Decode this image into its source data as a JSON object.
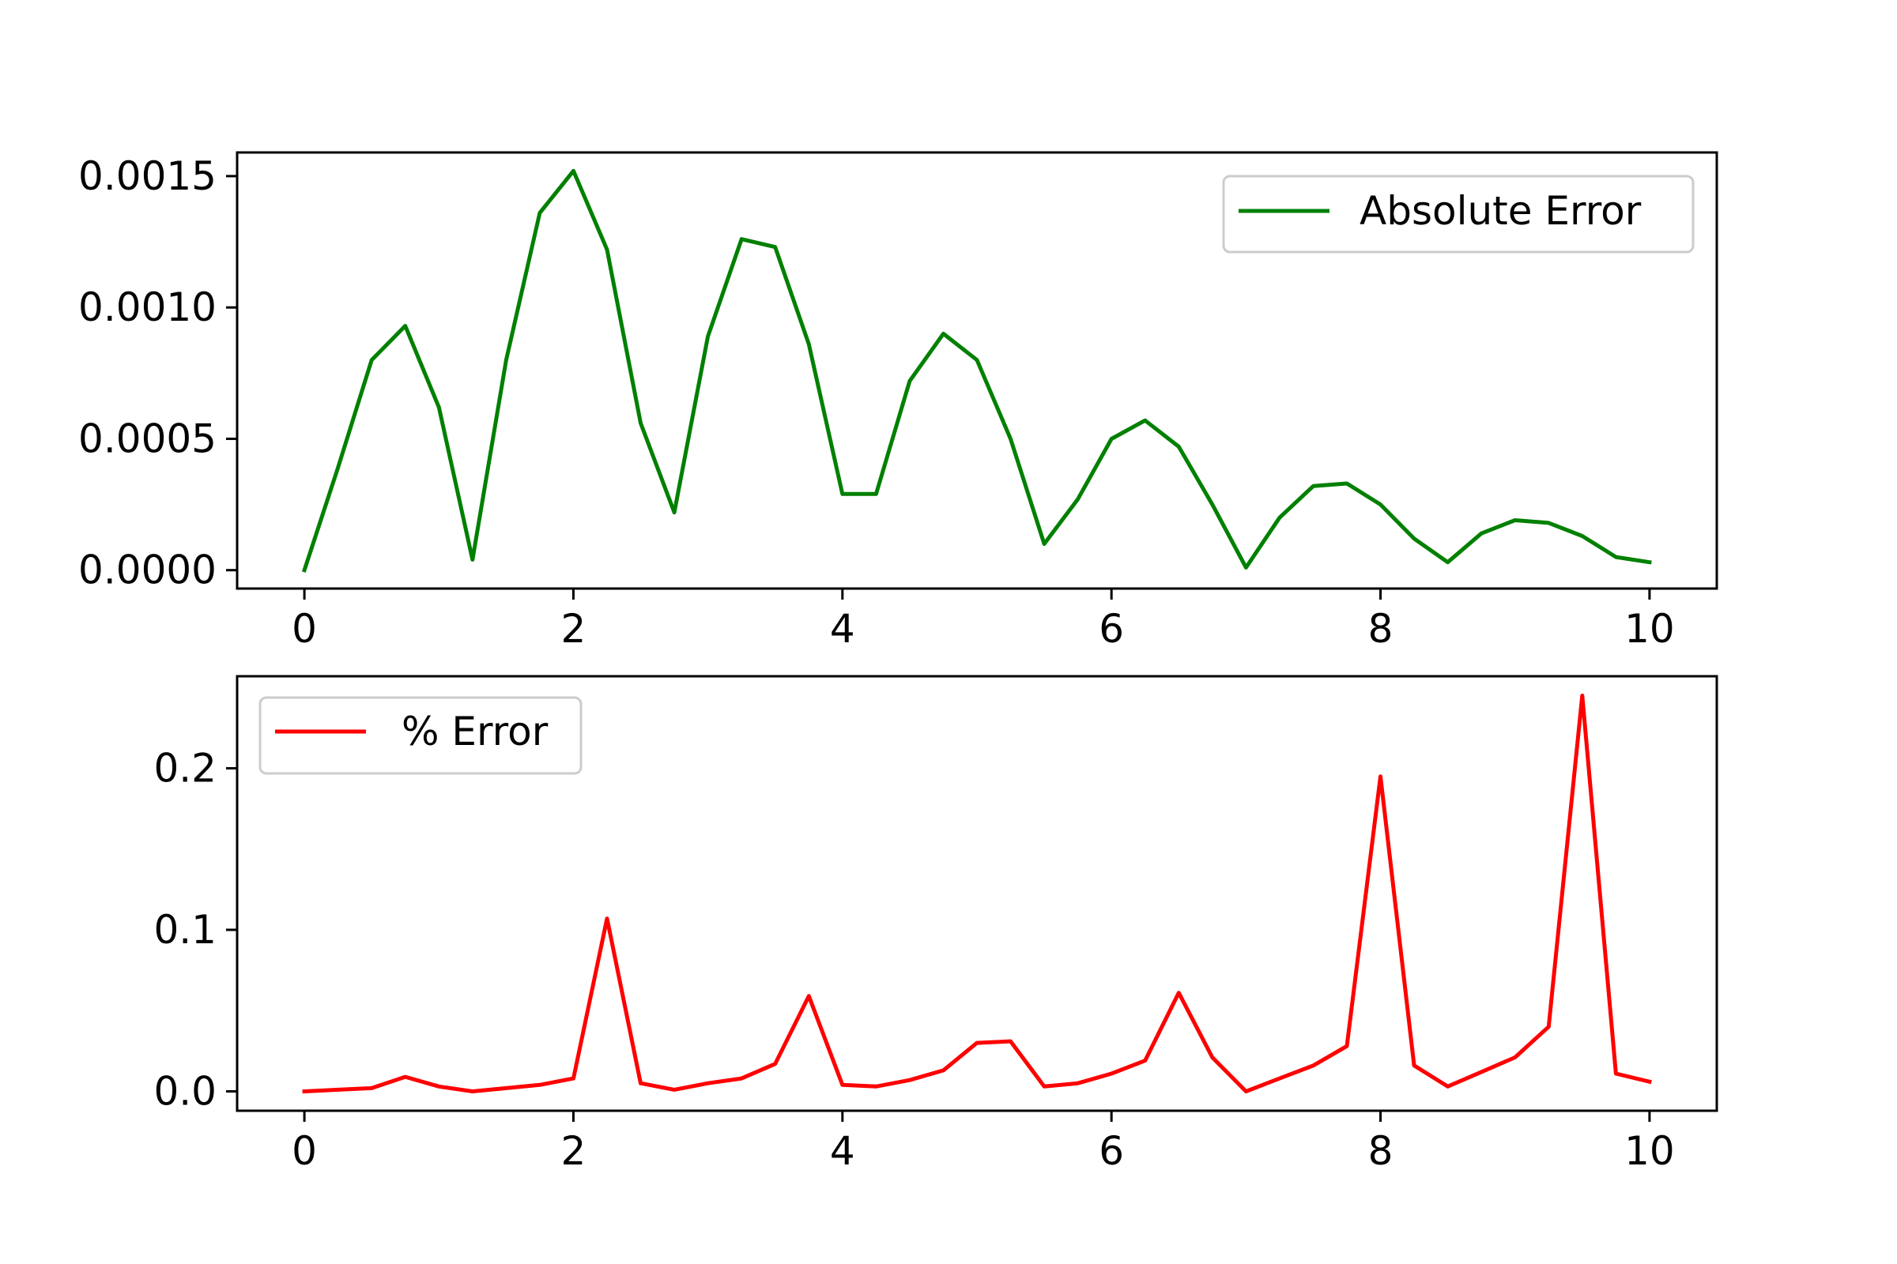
{
  "chart_data": [
    {
      "type": "line",
      "x": [
        0,
        0.25,
        0.5,
        0.75,
        1,
        1.25,
        1.5,
        1.75,
        2,
        2.25,
        2.5,
        2.75,
        3,
        3.25,
        3.5,
        3.75,
        4,
        4.25,
        4.5,
        4.75,
        5,
        5.25,
        5.5,
        5.75,
        6,
        6.25,
        6.5,
        6.75,
        7,
        7.25,
        7.5,
        7.75,
        8,
        8.25,
        8.5,
        8.75,
        9,
        9.25,
        9.5,
        9.75,
        10
      ],
      "series": [
        {
          "name": "Absolute Error",
          "color": "#008000",
          "values": [
            0.0,
            0.00039,
            0.0008,
            0.00093,
            0.00062,
            4e-05,
            0.0008,
            0.00136,
            0.00152,
            0.00122,
            0.00056,
            0.00022,
            0.00089,
            0.00126,
            0.00123,
            0.00086,
            0.00029,
            0.00029,
            0.00072,
            0.0009,
            0.0008,
            0.0005,
            0.0001,
            0.00027,
            0.0005,
            0.00057,
            0.00047,
            0.00025,
            1e-05,
            0.0002,
            0.00032,
            0.00033,
            0.00025,
            0.00012,
            3e-05,
            0.00014,
            0.00019,
            0.00018,
            0.00013,
            5e-05,
            3e-05
          ]
        }
      ],
      "xlim": [
        -0.5,
        10.5
      ],
      "ylim": [
        -7e-05,
        0.00159
      ],
      "xticks": [
        0,
        2,
        4,
        6,
        8,
        10
      ],
      "xtick_labels": [
        "0",
        "2",
        "4",
        "6",
        "8",
        "10"
      ],
      "yticks": [
        0,
        0.0005,
        0.001,
        0.0015
      ],
      "ytick_labels": [
        "0.0000",
        "0.0005",
        "0.0010",
        "0.0015"
      ],
      "legend": "top-right",
      "grid": false
    },
    {
      "type": "line",
      "x": [
        0,
        0.25,
        0.5,
        0.75,
        1,
        1.25,
        1.5,
        1.75,
        2,
        2.25,
        2.5,
        2.75,
        3,
        3.25,
        3.5,
        3.75,
        4,
        4.25,
        4.5,
        4.75,
        5,
        5.25,
        5.5,
        5.75,
        6,
        6.25,
        6.5,
        6.75,
        7,
        7.25,
        7.5,
        7.75,
        8,
        8.25,
        8.5,
        8.75,
        9,
        9.25,
        9.5,
        9.75,
        10
      ],
      "series": [
        {
          "name": "% Error",
          "color": "#ff0000",
          "values": [
            0.0,
            0.001,
            0.002,
            0.009,
            0.003,
            0.0,
            0.002,
            0.004,
            0.008,
            0.107,
            0.005,
            0.001,
            0.005,
            0.008,
            0.017,
            0.059,
            0.004,
            0.003,
            0.007,
            0.013,
            0.03,
            0.031,
            0.003,
            0.005,
            0.011,
            0.019,
            0.061,
            0.021,
            0.0,
            0.008,
            0.016,
            0.028,
            0.195,
            0.016,
            0.003,
            0.012,
            0.021,
            0.04,
            0.245,
            0.011,
            0.006
          ]
        }
      ],
      "xlim": [
        -0.5,
        10.5
      ],
      "ylim": [
        -0.012,
        0.257
      ],
      "xticks": [
        0,
        2,
        4,
        6,
        8,
        10
      ],
      "xtick_labels": [
        "0",
        "2",
        "4",
        "6",
        "8",
        "10"
      ],
      "yticks": [
        0,
        0.1,
        0.2
      ],
      "ytick_labels": [
        "0.0",
        "0.1",
        "0.2"
      ],
      "legend": "top-left",
      "grid": false
    }
  ]
}
